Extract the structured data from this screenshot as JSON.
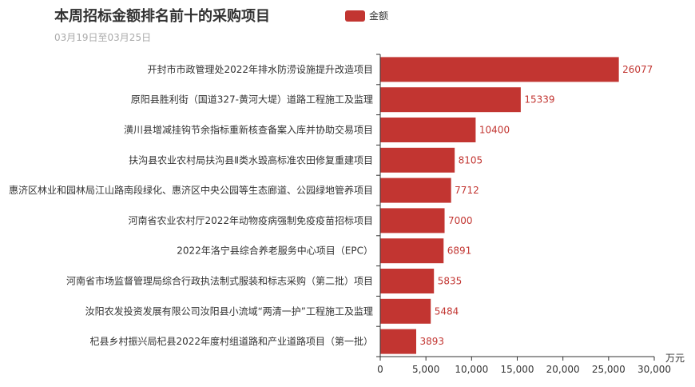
{
  "title": "本周招标金额排名前十的采购项目",
  "subtitle": "03月19日至03月25日",
  "legend": {
    "label": "金额",
    "color": "#c23531"
  },
  "chart_data": {
    "type": "bar",
    "orientation": "horizontal",
    "categories": [
      "开封市市政管理处2022年排水防涝设施提升改造项目",
      "原阳县胜利街（国道327-黄河大堤）道路工程施工及监理",
      "潢川县增减挂钩节余指标重新核查备案入库并协助交易项目",
      "扶沟县农业农村局扶沟县Ⅱ类水毁高标准农田修复重建项目",
      "惠济区林业和园林局江山路南段绿化、惠济区中央公园等生态廊道、公园绿地管养项目",
      "河南省农业农村厅2022年动物疫病强制免疫疫苗招标项目",
      "2022年洛宁县综合养老服务中心项目（EPC）",
      "河南省市场监督管理局综合行政执法制式服装和标志采购（第二批）项目",
      "汝阳农发投资发展有限公司汝阳县小流域“两清一护”工程施工及监理",
      "杞县乡村振兴局杞县2022年度村组道路和产业道路项目（第一批）"
    ],
    "series": [
      {
        "name": "金额",
        "values": [
          26077,
          15339,
          10400,
          8105,
          7712,
          7000,
          6891,
          5835,
          5484,
          3893
        ]
      }
    ],
    "xlabel": "万元",
    "xlim": [
      0,
      30000
    ],
    "xticks": [
      0,
      5000,
      10000,
      15000,
      20000,
      25000,
      30000
    ],
    "xtick_labels": [
      "0",
      "5,000",
      "10,000",
      "15,000",
      "20,000",
      "25,000",
      "30,000"
    ],
    "grid": false,
    "legend_position": "top-center",
    "bar_color": "#c23531"
  }
}
